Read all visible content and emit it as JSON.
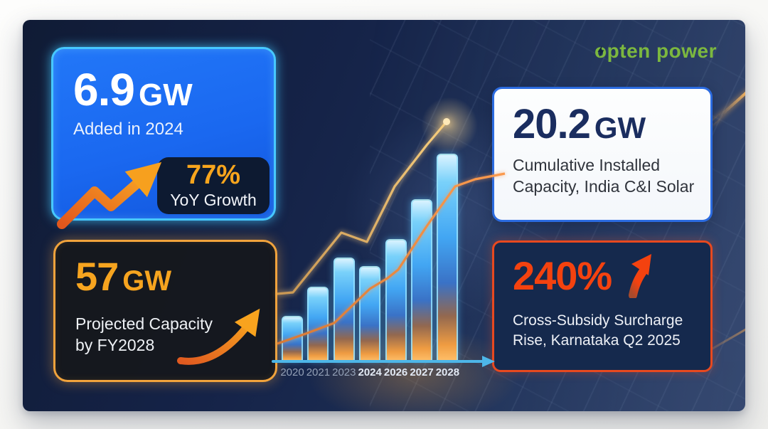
{
  "brand": {
    "logo_text": "opten power",
    "logo_color": "#7cb83f"
  },
  "cards": {
    "added_2024": {
      "value": "6.9",
      "unit": "GW",
      "caption": "Added in 2024",
      "badge": {
        "value": "77%",
        "caption": "YoY Growth"
      }
    },
    "cumulative": {
      "value": "20.2",
      "unit": "GW",
      "caption": "Cumulative Installed Capacity, India C&I Solar"
    },
    "projected": {
      "value": "57",
      "unit": "GW",
      "caption": "Projected Capacity by FY2028"
    },
    "surcharge": {
      "value": "240%",
      "caption": "Cross-Subsidy Surcharge Rise, Karnataka Q2 2025"
    }
  },
  "colors": {
    "accent_blue": "#1b6cf2",
    "cyan_border": "#45c8ff",
    "amber": "#f6a41f",
    "orange_border": "#f1a33c",
    "red_orange": "#f4420f",
    "red_border": "#e8491f",
    "navy_card": "#15294d",
    "headline_navy": "#1a2d5f",
    "logo_green": "#7cb83f",
    "axis_cyan": "#4db6e8"
  },
  "chart_data": {
    "type": "bar",
    "title": "",
    "xlabel": "",
    "ylabel": "",
    "categories": [
      "2020",
      "2021",
      "2023",
      "2024",
      "2026",
      "2027",
      "2028"
    ],
    "values": [
      22,
      36,
      50,
      46,
      59,
      78,
      100
    ],
    "values_note": "relative bar heights, % of tallest bar (no y-axis scale shown)",
    "ylim": [
      0,
      100
    ],
    "grid": false,
    "legend": "none",
    "dim_labels": [
      "2020",
      "2021",
      "2023"
    ],
    "lines": [
      {
        "name": "gold-trend-line",
        "class": "gold-line",
        "points": [
          [
            0,
            245
          ],
          [
            22,
            243
          ],
          [
            90,
            159
          ],
          [
            126,
            172
          ],
          [
            165,
            94
          ],
          [
            210,
            36
          ],
          [
            238,
            3
          ]
        ]
      },
      {
        "name": "orange-trend-line",
        "class": "orange-line",
        "points": [
          [
            0,
            315
          ],
          [
            40,
            301
          ],
          [
            80,
            286
          ],
          [
            130,
            238
          ],
          [
            155,
            223
          ],
          [
            170,
            211
          ],
          [
            210,
            150
          ],
          [
            250,
            94
          ],
          [
            278,
            84
          ],
          [
            320,
            76
          ]
        ]
      }
    ]
  }
}
